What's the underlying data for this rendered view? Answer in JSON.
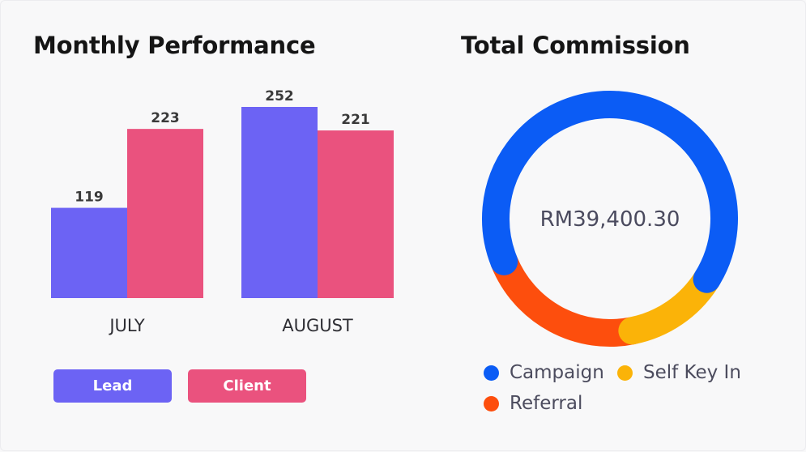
{
  "chart_data": [
    {
      "type": "bar",
      "title": "Monthly Performance",
      "categories": [
        "JULY",
        "AUGUST"
      ],
      "series": [
        {
          "name": "Lead",
          "values": [
            119,
            252
          ],
          "color": "#6c63f4"
        },
        {
          "name": "Client",
          "values": [
            223,
            221
          ],
          "color": "#ea527e"
        }
      ],
      "xlabel": "",
      "ylabel": "",
      "ylim": [
        0,
        252
      ],
      "grid": false,
      "legend": "bottom-left"
    },
    {
      "type": "pie",
      "title": "Total Commission",
      "center_label": "RM39,400.30",
      "labels": [
        "Campaign",
        "Self Key In",
        "Referral"
      ],
      "values": [
        65,
        13,
        22
      ],
      "colors": [
        "#0b5cf5",
        "#fbb308",
        "#fd4e0d"
      ],
      "legend": "bottom"
    }
  ]
}
